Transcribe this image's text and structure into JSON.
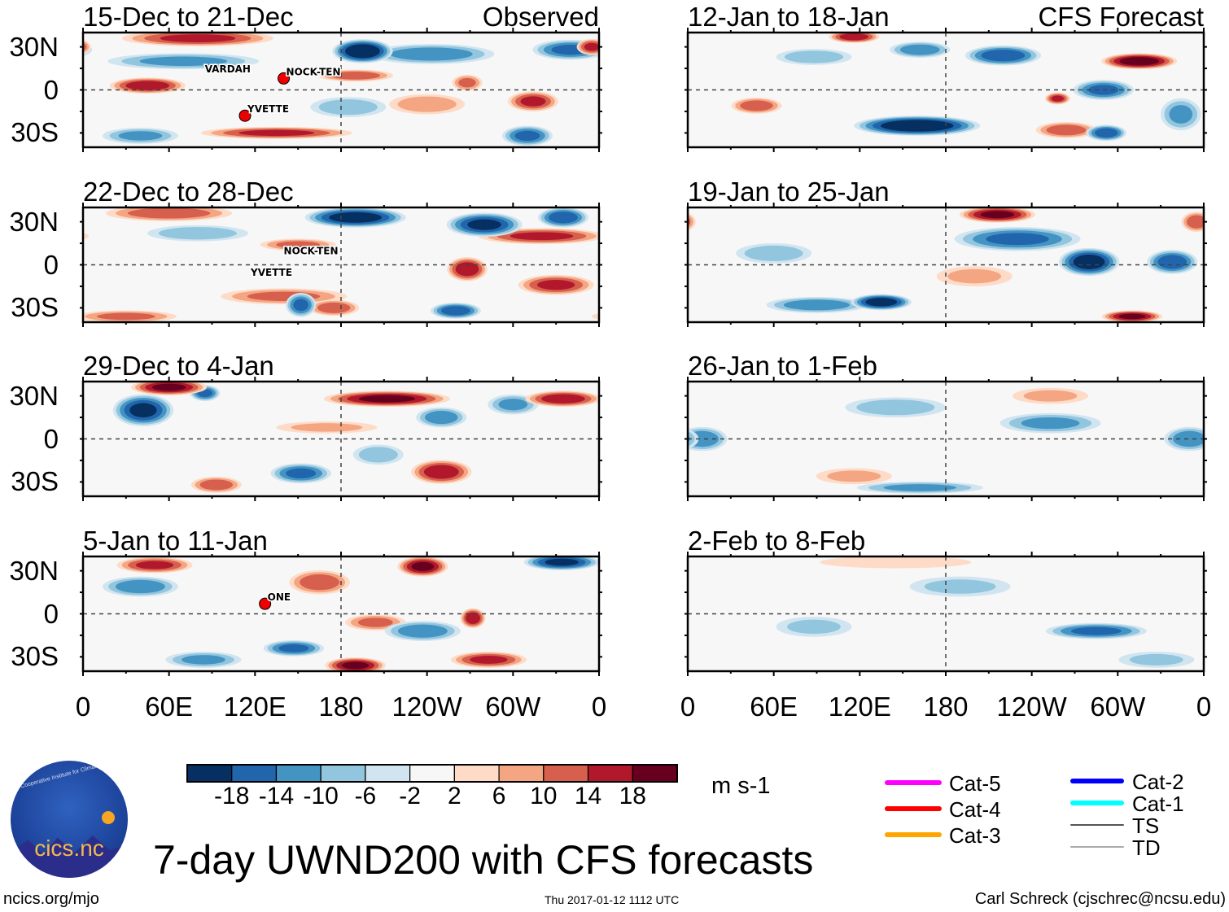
{
  "panels": [
    {
      "title": "15-Dec to 21-Dec",
      "tag": "Observed",
      "col": 0,
      "row": 0,
      "storms": [
        {
          "name": "VARDAH",
          "lon": 85,
          "lat": 10,
          "marker": false
        },
        {
          "name": "NOCK-TEN",
          "lon": 140,
          "lat": 8,
          "marker": true
        },
        {
          "name": "YVETTE",
          "lon": 113,
          "lat": -18,
          "marker": true
        }
      ],
      "anoms": [
        [
          195,
          27,
          -22,
          12,
          6
        ],
        [
          45,
          3,
          16,
          15,
          4
        ],
        [
          80,
          36,
          14,
          30,
          4
        ],
        [
          70,
          20,
          -10,
          30,
          4
        ],
        [
          135,
          -30,
          14,
          30,
          3
        ],
        [
          190,
          10,
          12,
          15,
          3
        ],
        [
          243,
          25,
          -12,
          25,
          5
        ],
        [
          268,
          5,
          10,
          6,
          4
        ],
        [
          314,
          -8,
          14,
          10,
          5
        ],
        [
          310,
          -32,
          -14,
          10,
          5
        ],
        [
          340,
          28,
          -14,
          15,
          5
        ],
        [
          355,
          30,
          14,
          6,
          4
        ],
        [
          185,
          -12,
          -8,
          15,
          5
        ],
        [
          240,
          -10,
          8,
          15,
          5
        ],
        [
          40,
          -32,
          -10,
          15,
          4
        ]
      ]
    },
    {
      "title": "22-Dec to 28-Dec",
      "tag": "",
      "col": 0,
      "row": 1,
      "storms": [
        {
          "name": "NOCK-TEN",
          "lon": 140,
          "lat": 5,
          "marker": false
        },
        {
          "name": "YVETTE",
          "lon": 117,
          "lat": -10,
          "marker": false
        }
      ],
      "anoms": [
        [
          190,
          33,
          -20,
          20,
          5
        ],
        [
          280,
          28,
          -18,
          15,
          6
        ],
        [
          320,
          20,
          14,
          25,
          4
        ],
        [
          268,
          -3,
          16,
          8,
          6
        ],
        [
          330,
          -14,
          14,
          15,
          5
        ],
        [
          60,
          36,
          12,
          25,
          4
        ],
        [
          80,
          22,
          -8,
          20,
          4
        ],
        [
          140,
          -22,
          10,
          25,
          4
        ],
        [
          175,
          -30,
          12,
          10,
          4
        ],
        [
          152,
          -28,
          -14,
          6,
          6
        ],
        [
          260,
          -32,
          -16,
          10,
          4
        ],
        [
          30,
          -36,
          10,
          20,
          3
        ],
        [
          150,
          14,
          10,
          15,
          3
        ],
        [
          335,
          33,
          -16,
          10,
          5
        ]
      ]
    },
    {
      "title": "29-Dec to 4-Jan",
      "tag": "",
      "col": 0,
      "row": 2,
      "storms": [],
      "anoms": [
        [
          42,
          20,
          -18,
          12,
          8
        ],
        [
          60,
          36,
          18,
          15,
          4
        ],
        [
          85,
          32,
          -14,
          6,
          4
        ],
        [
          212,
          28,
          18,
          25,
          4
        ],
        [
          250,
          15,
          -12,
          10,
          5
        ],
        [
          335,
          28,
          16,
          15,
          4
        ],
        [
          300,
          24,
          -10,
          10,
          5
        ],
        [
          250,
          -23,
          16,
          12,
          6
        ],
        [
          152,
          -24,
          -14,
          12,
          5
        ],
        [
          93,
          -32,
          12,
          10,
          4
        ],
        [
          206,
          -11,
          -8,
          10,
          5
        ],
        [
          170,
          8,
          6,
          20,
          3
        ]
      ]
    },
    {
      "title": "5-Jan to 11-Jan",
      "tag": "",
      "col": 0,
      "row": 3,
      "storms": [
        {
          "name": "ONE",
          "lon": 127,
          "lat": 7,
          "marker": true
        }
      ],
      "anoms": [
        [
          237,
          33,
          18,
          10,
          5
        ],
        [
          334,
          36,
          -18,
          15,
          4
        ],
        [
          165,
          22,
          12,
          12,
          6
        ],
        [
          272,
          -3,
          16,
          5,
          5
        ],
        [
          190,
          -36,
          18,
          12,
          4
        ],
        [
          147,
          -24,
          -14,
          12,
          4
        ],
        [
          40,
          19,
          -12,
          15,
          5
        ],
        [
          50,
          34,
          14,
          15,
          4
        ],
        [
          283,
          -32,
          14,
          15,
          4
        ],
        [
          237,
          -12,
          -12,
          15,
          5
        ],
        [
          204,
          -6,
          10,
          12,
          4
        ],
        [
          84,
          -32,
          -10,
          15,
          4
        ]
      ]
    },
    {
      "title": "12-Jan to 18-Jan",
      "tag": "CFS Forecast",
      "col": 1,
      "row": 0,
      "storms": [],
      "anoms": [
        [
          160,
          -25,
          -22,
          25,
          5
        ],
        [
          220,
          24,
          -16,
          15,
          5
        ],
        [
          315,
          20,
          20,
          15,
          4
        ],
        [
          290,
          0,
          -14,
          12,
          5
        ],
        [
          264,
          -28,
          12,
          12,
          4
        ],
        [
          292,
          -30,
          -16,
          8,
          4
        ],
        [
          116,
          37,
          16,
          10,
          3
        ],
        [
          162,
          28,
          -12,
          12,
          4
        ],
        [
          48,
          -11,
          12,
          10,
          4
        ],
        [
          258,
          -6,
          14,
          5,
          3
        ],
        [
          88,
          23,
          -8,
          15,
          4
        ],
        [
          344,
          -17,
          -10,
          8,
          8
        ]
      ]
    },
    {
      "title": "19-Jan to 25-Jan",
      "tag": "",
      "col": 1,
      "row": 1,
      "storms": [],
      "anoms": [
        [
          216,
          35,
          18,
          15,
          4
        ],
        [
          280,
          2,
          -20,
          12,
          7
        ],
        [
          230,
          18,
          -14,
          25,
          6
        ],
        [
          135,
          -26,
          -20,
          12,
          4
        ],
        [
          90,
          -28,
          -12,
          20,
          4
        ],
        [
          310,
          -36,
          18,
          12,
          3
        ],
        [
          338,
          2,
          -16,
          10,
          6
        ],
        [
          355,
          30,
          12,
          6,
          5
        ],
        [
          60,
          8,
          -8,
          15,
          5
        ],
        [
          200,
          -8,
          6,
          15,
          5
        ]
      ]
    },
    {
      "title": "26-Jan to 1-Feb",
      "tag": "",
      "col": 1,
      "row": 2,
      "storms": [],
      "anoms": [
        [
          10,
          0,
          -12,
          10,
          6
        ],
        [
          145,
          22,
          -8,
          20,
          5
        ],
        [
          253,
          11,
          -10,
          20,
          5
        ],
        [
          350,
          0,
          -12,
          10,
          6
        ],
        [
          162,
          -34,
          -10,
          25,
          3
        ],
        [
          253,
          30,
          6,
          15,
          4
        ],
        [
          116,
          -26,
          6,
          15,
          4
        ]
      ]
    },
    {
      "title": "2-Feb to 8-Feb",
      "tag": "",
      "col": 1,
      "row": 3,
      "storms": [],
      "anoms": [
        [
          285,
          -12,
          -14,
          20,
          4
        ],
        [
          190,
          19,
          -6,
          20,
          5
        ],
        [
          88,
          -9,
          -6,
          15,
          5
        ],
        [
          145,
          36,
          4,
          30,
          3
        ],
        [
          327,
          -32,
          -6,
          15,
          4
        ]
      ]
    }
  ],
  "y_labels": [
    "30N",
    "0",
    "30S"
  ],
  "x_labels": [
    "0",
    "60E",
    "120E",
    "180",
    "120W",
    "60W",
    "0"
  ],
  "colorbar": {
    "colors": [
      "#053061",
      "#2166ac",
      "#4393c3",
      "#92c5de",
      "#d1e5f0",
      "#f7f7f7",
      "#fddbc7",
      "#f4a582",
      "#d6604d",
      "#b2182b",
      "#67001f"
    ],
    "levels": [
      -18,
      -14,
      -10,
      -6,
      -2,
      2,
      6,
      10,
      14,
      18
    ],
    "labels": [
      "-18",
      "-14",
      "-10",
      "-6",
      "-2",
      "2",
      "6",
      "10",
      "14",
      "18"
    ],
    "units": "m s-1"
  },
  "legend": [
    {
      "label": "Cat-5",
      "color": "#ff00ff"
    },
    {
      "label": "Cat-4",
      "color": "#ff0000"
    },
    {
      "label": "Cat-3",
      "color": "#ffa500"
    },
    {
      "label": "Cat-2",
      "color": "#0000ff"
    },
    {
      "label": "Cat-1",
      "color": "#00ffff"
    },
    {
      "label": "TS",
      "color": "#555555"
    },
    {
      "label": "TD",
      "color": "#aaaaaa"
    }
  ],
  "logo": {
    "text": "cics.nc",
    "arc": "Cooperative Institute for Climate and Satellites"
  },
  "main_title": "7-day UWND200 with CFS forecasts",
  "footer": {
    "left": "ncics.org/mjo",
    "center": "Thu 2017-01-12 1112 UTC",
    "right": "Carl Schreck (cjschrec@ncsu.edu)"
  }
}
